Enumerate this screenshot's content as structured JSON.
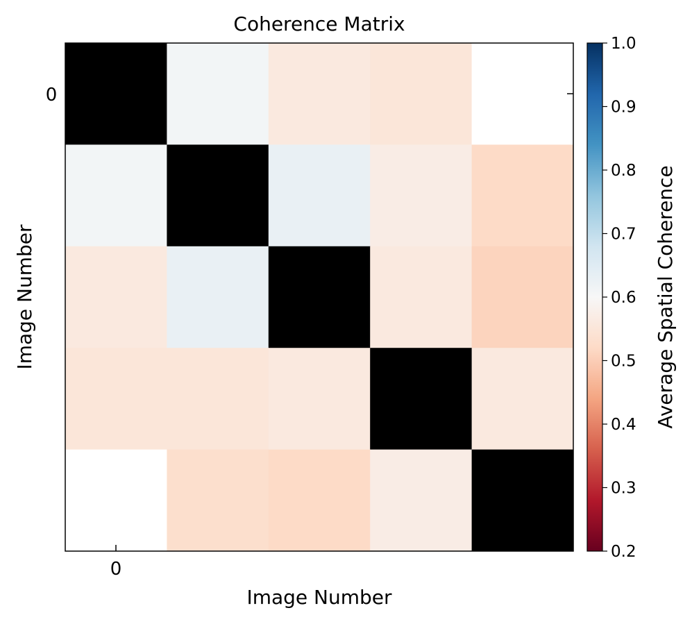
{
  "chart_data": {
    "type": "heatmap",
    "title": "Coherence Matrix",
    "xlabel": "Image Number",
    "ylabel": "Image Number",
    "x_tick_labels": [
      "0"
    ],
    "y_tick_labels": [
      "0"
    ],
    "colorbar": {
      "label": "Average Spatial Coherence",
      "range": [
        0.2,
        1.0
      ],
      "ticks": [
        "0.2",
        "0.3",
        "0.4",
        "0.5",
        "0.6",
        "0.7",
        "0.8",
        "0.9",
        "1.0"
      ],
      "colormap": "RdBu"
    },
    "diagonal_color": "#000000",
    "missing_color": "#ffffff",
    "rows": 5,
    "cols": 5,
    "values": [
      [
        null,
        0.61,
        0.56,
        0.55,
        null
      ],
      [
        0.61,
        null,
        0.63,
        0.57,
        0.52
      ],
      [
        0.56,
        0.63,
        null,
        0.56,
        0.51
      ],
      [
        0.55,
        0.55,
        0.56,
        null,
        0.56
      ],
      [
        null,
        0.53,
        0.52,
        0.57,
        null
      ]
    ],
    "diagonal_values": [
      1.0,
      1.0,
      1.0,
      1.0,
      1.0
    ]
  }
}
